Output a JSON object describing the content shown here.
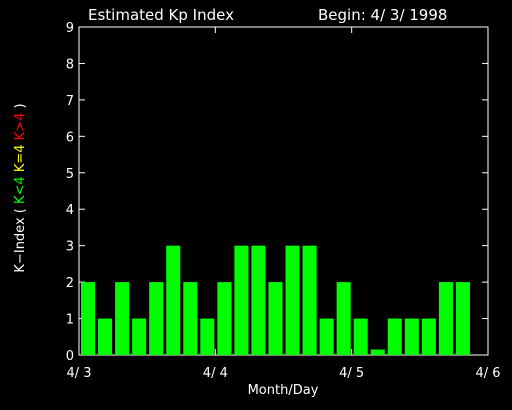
{
  "chart_data": {
    "type": "bar",
    "title": "Estimated Kp Index",
    "begin_label": "Begin: 4/ 3/ 1998",
    "xlabel": "Month/Day",
    "ylabel_parts": [
      {
        "text": "K−Index ( ",
        "color": "#ffffff"
      },
      {
        "text": "K<4",
        "color": "#00ff00"
      },
      {
        "text": " K=4",
        "color": "#ffff00"
      },
      {
        "text": " K>4",
        "color": "#ff0000"
      },
      {
        "text": " )",
        "color": "#ffffff"
      }
    ],
    "ylim": [
      0,
      9
    ],
    "yticks": [
      "0",
      "1",
      "2",
      "3",
      "4",
      "5",
      "6",
      "7",
      "8",
      "9"
    ],
    "xlim": [
      0,
      24
    ],
    "xticks": [
      {
        "x": 0,
        "label": "4/ 3"
      },
      {
        "x": 8,
        "label": "4/ 4"
      },
      {
        "x": 16,
        "label": "4/ 5"
      },
      {
        "x": 24,
        "label": "4/ 6"
      }
    ],
    "values": [
      2,
      1,
      2,
      1,
      2,
      3,
      2,
      1,
      2,
      3,
      3,
      2,
      3,
      3,
      1,
      2,
      1,
      0.15,
      1,
      1,
      1,
      2,
      2
    ],
    "bar_color": "#00ff00",
    "axis_color": "#ffffff",
    "background": "#000000"
  }
}
